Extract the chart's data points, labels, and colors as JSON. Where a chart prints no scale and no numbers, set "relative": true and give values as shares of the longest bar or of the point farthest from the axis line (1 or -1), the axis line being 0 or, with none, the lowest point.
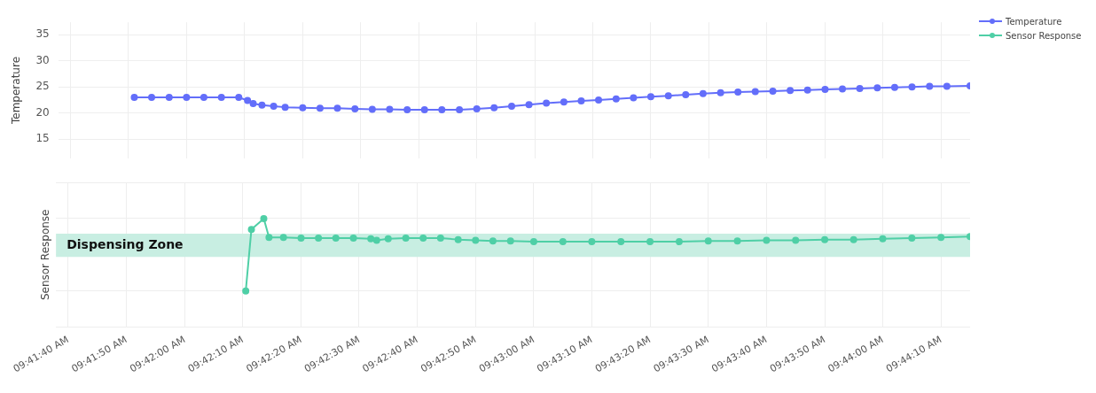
{
  "chart_data": [
    {
      "type": "line",
      "ylabel": "Temperature",
      "xlim": [
        9.69386,
        9.7375
      ],
      "ylim": [
        11.3,
        37.4
      ],
      "yticks": [
        15,
        20,
        25,
        30,
        35
      ],
      "xticks": [
        {
          "value": 9.69444,
          "label": null
        },
        {
          "value": 9.69722,
          "label": null
        },
        {
          "value": 9.7,
          "label": null
        },
        {
          "value": 9.70278,
          "label": null
        },
        {
          "value": 9.70556,
          "label": null
        },
        {
          "value": 9.70833,
          "label": null
        },
        {
          "value": 9.71111,
          "label": null
        },
        {
          "value": 9.71389,
          "label": null
        },
        {
          "value": 9.71667,
          "label": null
        },
        {
          "value": 9.71944,
          "label": null
        },
        {
          "value": 9.72222,
          "label": null
        },
        {
          "value": 9.725,
          "label": null
        },
        {
          "value": 9.72778,
          "label": null
        },
        {
          "value": 9.73056,
          "label": null
        },
        {
          "value": 9.73333,
          "label": null
        },
        {
          "value": 9.73611,
          "label": null
        }
      ],
      "tick_labels": "y",
      "grid": true,
      "legend": "top right",
      "marker": "circle",
      "line_style": "solid",
      "series": [
        {
          "name": "Temperature",
          "color": "#636efa",
          "x": [
            9.6975,
            9.69833,
            9.69917,
            9.7,
            9.70083,
            9.70167,
            9.7025,
            9.70292,
            9.70319,
            9.70361,
            9.70417,
            9.70472,
            9.70556,
            9.70639,
            9.70722,
            9.70806,
            9.70889,
            9.70972,
            9.71056,
            9.71139,
            9.71222,
            9.71306,
            9.71389,
            9.71472,
            9.71556,
            9.71639,
            9.71722,
            9.71806,
            9.71889,
            9.71972,
            9.72056,
            9.72139,
            9.72222,
            9.72306,
            9.72389,
            9.72472,
            9.72556,
            9.72639,
            9.72722,
            9.72806,
            9.72889,
            9.72972,
            9.73056,
            9.73139,
            9.73222,
            9.73306,
            9.73389,
            9.73472,
            9.73556,
            9.73639,
            9.7375
          ],
          "values": [
            23.0,
            23.0,
            23.0,
            23.0,
            23.0,
            23.0,
            23.0,
            22.4,
            21.8,
            21.5,
            21.3,
            21.1,
            21.0,
            20.9,
            20.9,
            20.8,
            20.7,
            20.7,
            20.6,
            20.6,
            20.6,
            20.6,
            20.8,
            21.0,
            21.3,
            21.6,
            21.9,
            22.1,
            22.3,
            22.5,
            22.7,
            22.9,
            23.1,
            23.3,
            23.5,
            23.7,
            23.9,
            24.0,
            24.1,
            24.2,
            24.3,
            24.4,
            24.5,
            24.6,
            24.7,
            24.8,
            24.9,
            25.0,
            25.1,
            25.1,
            25.2
          ]
        }
      ]
    },
    {
      "type": "line",
      "ylabel": "Sensor Response",
      "relative": true,
      "xlim": [
        9.69386,
        9.7375
      ],
      "xticks": [
        {
          "value": 9.69444,
          "label": "09:41:40 AM"
        },
        {
          "value": 9.69722,
          "label": "09:41:50 AM"
        },
        {
          "value": 9.7,
          "label": "09:42:00 AM"
        },
        {
          "value": 9.70278,
          "label": "09:42:10 AM"
        },
        {
          "value": 9.70556,
          "label": "09:42:20 AM"
        },
        {
          "value": 9.70833,
          "label": "09:42:30 AM"
        },
        {
          "value": 9.71111,
          "label": "09:42:40 AM"
        },
        {
          "value": 9.71389,
          "label": "09:42:50 AM"
        },
        {
          "value": 9.71667,
          "label": "09:43:00 AM"
        },
        {
          "value": 9.71944,
          "label": "09:43:10 AM"
        },
        {
          "value": 9.72222,
          "label": "09:43:20 AM"
        },
        {
          "value": 9.725,
          "label": "09:43:30 AM"
        },
        {
          "value": 9.72778,
          "label": "09:43:40 AM"
        },
        {
          "value": 9.73056,
          "label": "09:43:50 AM"
        },
        {
          "value": 9.73333,
          "label": "09:44:00 AM"
        },
        {
          "value": 9.73611,
          "label": "09:44:10 AM"
        }
      ],
      "tick_labels": "x",
      "grid": true,
      "legend": "top right",
      "marker": "circle",
      "line_style": "solid",
      "bands": [
        {
          "axis": "y",
          "from": 0.47,
          "to": 0.79,
          "label": "Dispensing Zone",
          "color": "#c8eee2"
        }
      ],
      "series": [
        {
          "name": "Sensor Response",
          "color": "#4fcfa6",
          "x": [
            9.70292,
            9.70319,
            9.70378,
            9.70403,
            9.70472,
            9.70556,
            9.70639,
            9.70722,
            9.70806,
            9.70889,
            9.70917,
            9.70972,
            9.71056,
            9.71139,
            9.71222,
            9.71306,
            9.71389,
            9.71472,
            9.71556,
            9.71667,
            9.71806,
            9.71944,
            9.72083,
            9.72222,
            9.72361,
            9.725,
            9.72639,
            9.72778,
            9.72917,
            9.73056,
            9.73194,
            9.73333,
            9.73472,
            9.73611,
            9.7375
          ],
          "values": [
            0,
            0.85,
            1,
            0.74,
            0.74,
            0.73,
            0.73,
            0.73,
            0.73,
            0.72,
            0.7,
            0.72,
            0.73,
            0.73,
            0.73,
            0.71,
            0.7,
            0.69,
            0.69,
            0.68,
            0.68,
            0.68,
            0.68,
            0.68,
            0.68,
            0.69,
            0.69,
            0.7,
            0.7,
            0.71,
            0.71,
            0.72,
            0.73,
            0.74,
            0.75
          ]
        }
      ]
    }
  ]
}
